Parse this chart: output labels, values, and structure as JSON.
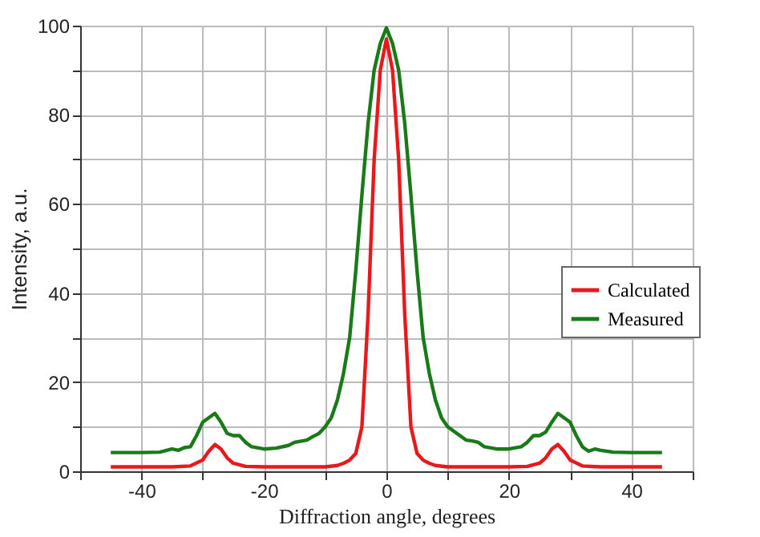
{
  "chart_data": {
    "type": "line",
    "xlabel": "Diffraction angle, degrees",
    "ylabel": "Intensity, a.u.",
    "xlim": [
      -50,
      50
    ],
    "ylim": [
      0,
      100
    ],
    "xticks": [
      {
        "value": -50,
        "label": null
      },
      -40,
      {
        "value": -30,
        "label": null
      },
      -20,
      {
        "value": -10,
        "label": null
      },
      0,
      {
        "value": 10,
        "label": null
      },
      20,
      {
        "value": 30,
        "label": null
      },
      40,
      {
        "value": 50,
        "label": null
      }
    ],
    "yticks": [
      0,
      {
        "value": 10,
        "label": null
      },
      20,
      {
        "value": 30,
        "label": null
      },
      40,
      {
        "value": 50,
        "label": null
      },
      60,
      {
        "value": 70,
        "label": null
      },
      80,
      {
        "value": 90,
        "label": null
      },
      100
    ],
    "grid": true,
    "legend": "right",
    "line_style": "solid",
    "series": [
      {
        "name": "Calculated",
        "color": "#e8191c",
        "x": [
          -45,
          -40,
          -35,
          -32,
          -30,
          -29,
          -28,
          -27,
          -26,
          -25,
          -23,
          -20,
          -15,
          -10,
          -8,
          -7,
          -6,
          -5,
          -4,
          -3,
          -2,
          -1,
          0,
          1,
          2,
          3,
          4,
          5,
          6,
          7,
          8,
          10,
          15,
          20,
          23,
          25,
          26,
          27,
          28,
          29,
          30,
          32,
          35,
          40,
          45
        ],
        "values": [
          1,
          1,
          1,
          1.2,
          2.5,
          4.5,
          6,
          5,
          3,
          1.8,
          1.1,
          1,
          1,
          1,
          1.3,
          1.8,
          2.5,
          4,
          10,
          35,
          70,
          90,
          97,
          90,
          70,
          35,
          10,
          4,
          2.5,
          1.8,
          1.3,
          1,
          1,
          1,
          1.1,
          1.8,
          3,
          5,
          6,
          4.5,
          2.5,
          1.2,
          1,
          1,
          1
        ]
      },
      {
        "name": "Measured",
        "color": "#1a7a1a",
        "x": [
          -45,
          -40,
          -37,
          -35,
          -34,
          -33,
          -32,
          -31,
          -30,
          -29,
          -28,
          -27,
          -26,
          -25,
          -24,
          -23,
          -22,
          -20,
          -18,
          -16,
          -15,
          -13,
          -12,
          -11,
          -10,
          -9,
          -8,
          -7,
          -6,
          -5,
          -4,
          -3,
          -2,
          -1,
          0,
          1,
          2,
          3,
          4,
          5,
          6,
          7,
          8,
          9,
          10,
          11,
          12,
          13,
          14,
          15,
          16,
          18,
          20,
          22,
          23,
          24,
          25,
          26,
          27,
          28,
          29,
          30,
          31,
          32,
          33,
          34,
          35,
          37,
          40,
          45
        ],
        "values": [
          4.2,
          4.2,
          4.3,
          5,
          4.7,
          5.3,
          5.5,
          8,
          11,
          12,
          13,
          11,
          8.5,
          8,
          8,
          6.5,
          5.5,
          5,
          5.2,
          5.8,
          6.5,
          7,
          7.8,
          8.5,
          10,
          12,
          16,
          22,
          30,
          45,
          62,
          78,
          90,
          96,
          99.5,
          96,
          90,
          78,
          62,
          45,
          30,
          22,
          16,
          12,
          10,
          9,
          8,
          7,
          6.8,
          6.5,
          5.5,
          5,
          5,
          5.5,
          6.5,
          8,
          8,
          8.8,
          11,
          13,
          12,
          11,
          8,
          5.5,
          4.5,
          5,
          4.7,
          4.3,
          4.2,
          4.2
        ]
      }
    ]
  }
}
